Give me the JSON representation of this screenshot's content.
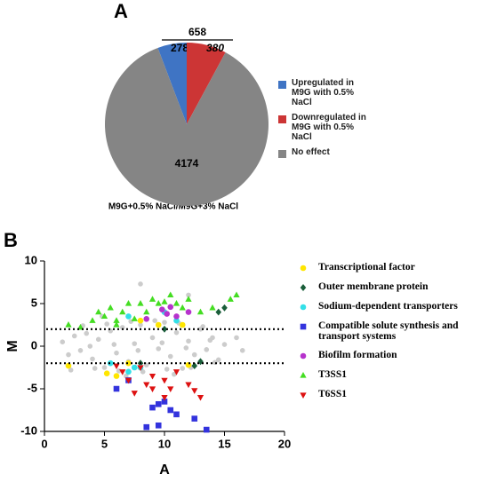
{
  "chart_data": [
    {
      "type": "pie",
      "panel": "A",
      "total": 658,
      "caption": "M9G+0.5% NaCl/M9G+3% NaCl",
      "categories": [
        "Upregulated in M9G with 0.5% NaCl",
        "Downregulated in M9G with 0.5% NaCl",
        "No effect"
      ],
      "values": [
        278,
        380,
        4174
      ],
      "colors": [
        "#3f74c4",
        "#cc3535",
        "#858585"
      ]
    },
    {
      "type": "scatter",
      "panel": "B",
      "xlabel": "A",
      "ylabel": "M",
      "xlim": [
        0,
        20
      ],
      "ylim": [
        -10,
        10
      ],
      "xticks": [
        0,
        5,
        10,
        15,
        20
      ],
      "yticks": [
        -10,
        -5,
        0,
        5,
        10
      ],
      "hlines": [
        2,
        -2
      ],
      "series": [
        {
          "color": "#cccccc",
          "marker": "circle",
          "x": [
            1.5,
            2,
            2.5,
            3,
            3.5,
            4,
            4.5,
            5,
            5.5,
            6,
            6.5,
            7,
            7.5,
            8,
            8.5,
            9,
            9.5,
            10,
            10.5,
            11,
            11.5,
            12,
            12.5,
            13,
            13.5,
            14,
            14.5,
            15,
            2.2,
            3.2,
            4.2,
            5.2,
            6.2,
            7.2,
            8.2,
            9.2,
            10.2,
            11.2,
            12.2,
            13.2,
            14.2,
            3.8,
            5.8,
            7.8,
            9.8,
            11.8,
            13.8,
            8,
            12,
            6.8,
            10.8,
            4.8,
            16,
            16.5
          ],
          "values": [
            0.5,
            -1,
            1.2,
            -0.5,
            1.5,
            -1.5,
            0.8,
            -2.5,
            1.8,
            -0.8,
            2.2,
            -1.8,
            0.3,
            2.5,
            -2.2,
            1,
            -0.3,
            2.8,
            -1.2,
            1.6,
            -2.6,
            0.6,
            -1,
            2,
            -0.4,
            1,
            -1.6,
            0.2,
            -2.8,
            2.4,
            -2.6,
            2.6,
            -2.9,
            2.9,
            -3,
            3,
            -2.7,
            2.7,
            -2.5,
            2.3,
            -1.9,
            0,
            0.2,
            -0.5,
            0.4,
            -0.2,
            0.7,
            7.3,
            6,
            -3.5,
            -3.3,
            3.5,
            1,
            -0.5
          ]
        },
        {
          "name": "Transcriptional factor",
          "color": "#ffe600",
          "marker": "circle",
          "x": [
            2,
            5.2,
            6,
            7,
            9.5,
            11.5,
            12,
            8
          ],
          "values": [
            -2.3,
            -3.2,
            -3.5,
            -2,
            2.5,
            2.5,
            -2.2,
            3
          ]
        },
        {
          "name": "Outer membrane protein",
          "color": "#1a5e3a",
          "marker": "diamond",
          "x": [
            14.5,
            15,
            8,
            10,
            12.5,
            13
          ],
          "values": [
            4,
            4.5,
            -2,
            2,
            -2.3,
            -1.8
          ]
        },
        {
          "name": "Sodium-dependent transporters",
          "color": "#33e0e8",
          "marker": "circle",
          "x": [
            7,
            7.5,
            10,
            5.5,
            8,
            11,
            7
          ],
          "values": [
            3.5,
            -2.5,
            4,
            -2,
            -2.5,
            3,
            -3
          ]
        },
        {
          "name": "Compatible solute synthesis and transport systems",
          "color": "#3333dd",
          "marker": "square",
          "x": [
            7,
            6,
            9.5,
            10,
            9,
            10.5,
            11,
            8.5,
            9.5,
            12.5,
            13.5
          ],
          "values": [
            -4,
            -5,
            -6.8,
            -6.5,
            -7.2,
            -7.5,
            -8,
            -9.5,
            -9.3,
            -8.5,
            -9.8
          ]
        },
        {
          "name": "Biofilm formation",
          "color": "#b633cc",
          "marker": "circle",
          "x": [
            9.8,
            10.2,
            11,
            12,
            10.5,
            8.5
          ],
          "values": [
            4.3,
            3.8,
            3.5,
            4,
            4.6,
            3.2
          ]
        },
        {
          "name": "T3SS1",
          "color": "#44dd22",
          "marker": "triangle-up",
          "x": [
            2,
            4,
            4.5,
            5,
            5.5,
            6,
            6.5,
            7,
            7.5,
            8,
            8.5,
            9,
            9.5,
            10,
            10.5,
            11,
            11.5,
            12,
            13,
            14,
            15.5,
            16,
            6,
            3
          ],
          "values": [
            2.5,
            3,
            4,
            3.5,
            4.5,
            3,
            4,
            5,
            3.2,
            5,
            4,
            5.5,
            5,
            5.2,
            6,
            5,
            4.5,
            5.5,
            4,
            4.5,
            5.5,
            6,
            2.5,
            2.2
          ]
        },
        {
          "name": "T6SS1",
          "color": "#dd1111",
          "marker": "triangle-down",
          "x": [
            6.5,
            7,
            7.5,
            8,
            8.5,
            9,
            9,
            10,
            10.5,
            10,
            11,
            12,
            12.5,
            13,
            6
          ],
          "values": [
            -3,
            -4,
            -5.5,
            -2.5,
            -4.5,
            -3.5,
            -5,
            -4,
            -5,
            -6,
            -3,
            -4.5,
            -5.2,
            -6,
            -2.3
          ]
        }
      ]
    }
  ]
}
